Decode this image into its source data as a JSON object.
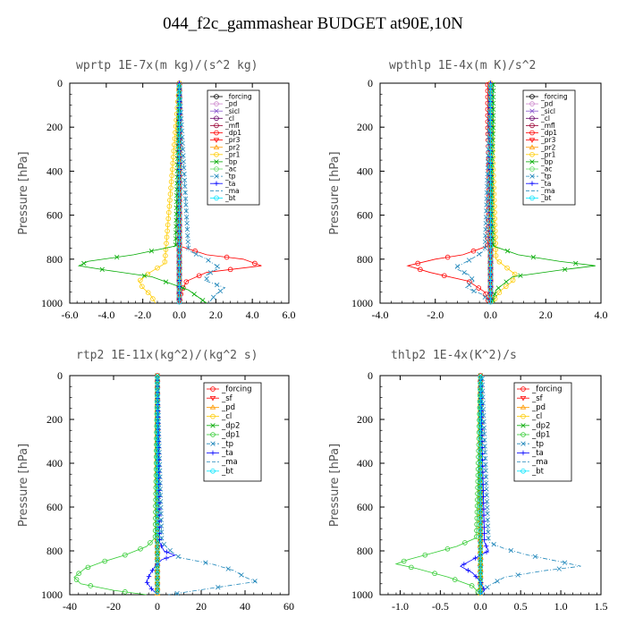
{
  "figure": {
    "title": "044_f2c_gammashear  BUDGET at90E,10N"
  },
  "chart_data": [
    {
      "type": "line",
      "title": "wprtp  1E-7x(m kg)/(s^2 kg)",
      "ylabel": "Pressure [hPa]",
      "xlim": [
        -6,
        6
      ],
      "ylim": [
        1000,
        0
      ],
      "x_ticks": [
        -6,
        -4,
        -2,
        0,
        2,
        4,
        6
      ],
      "x_tick_labels": [
        "-6.0",
        "-4.0",
        "-2.0",
        "0.0",
        "2.0",
        "4.0",
        "6.0"
      ],
      "y_ticks": [
        0,
        200,
        400,
        600,
        800,
        1000
      ],
      "y_tick_labels": [
        "0",
        "200",
        "400",
        "600",
        "800",
        "1000"
      ],
      "legend": "top-right",
      "series": [
        {
          "name": "_forcing",
          "color": "#000000",
          "marker": "o",
          "p": [
            0,
            1000
          ],
          "x": [
            0,
            0
          ]
        },
        {
          "name": "_pd",
          "color": "#cc88cc",
          "marker": "o",
          "p": [
            0,
            1000
          ],
          "x": [
            0,
            0
          ]
        },
        {
          "name": "_sicl",
          "color": "#8855cc",
          "marker": "x",
          "p": [
            0,
            1000
          ],
          "x": [
            0,
            0
          ]
        },
        {
          "name": "_cl",
          "color": "#660066",
          "marker": "o",
          "p": [
            0,
            1000
          ],
          "x": [
            0,
            0
          ]
        },
        {
          "name": "_mfl",
          "color": "#990033",
          "marker": "o",
          "p": [
            0,
            1000
          ],
          "x": [
            0,
            0
          ]
        },
        {
          "name": "_dp1",
          "color": "#ff0000",
          "marker": "o",
          "p": [
            0,
            740,
            780,
            800,
            830,
            860,
            900,
            950,
            1000
          ],
          "x": [
            0,
            0,
            1.5,
            3.5,
            4.5,
            1.5,
            0.4,
            0.1,
            0
          ]
        },
        {
          "name": "_pr3",
          "color": "#ff0000",
          "marker": "v",
          "p": [
            0,
            1000
          ],
          "x": [
            0,
            0
          ]
        },
        {
          "name": "_pr2",
          "color": "#ff9900",
          "marker": "^",
          "p": [
            0,
            1000
          ],
          "x": [
            0,
            0
          ]
        },
        {
          "name": "_pr1",
          "color": "#ffcc00",
          "marker": "o",
          "p": [
            0,
            820,
            860,
            900,
            930,
            960,
            1000
          ],
          "x": [
            0,
            -0.8,
            -1.6,
            -2.2,
            -2.0,
            -1.6,
            -1.3
          ]
        },
        {
          "name": "_bp",
          "color": "#00aa00",
          "marker": "x",
          "p": [
            0,
            740,
            780,
            810,
            830,
            850,
            880,
            940,
            1000
          ],
          "x": [
            0,
            -0.2,
            -2.5,
            -5.0,
            -5.5,
            -4.0,
            -1.5,
            0.5,
            1.5
          ]
        },
        {
          "name": "_ac",
          "color": "#66dd66",
          "marker": "o",
          "p": [
            0,
            1000
          ],
          "x": [
            0,
            0
          ]
        },
        {
          "name": "_tp",
          "color": "#2288bb",
          "marker": "x",
          "p": [
            0,
            760,
            800,
            840,
            870,
            900,
            930,
            960,
            1000
          ],
          "x": [
            0,
            0.5,
            1.5,
            2.2,
            1.5,
            1.5,
            2.5,
            2.0,
            1.6
          ]
        },
        {
          "name": "_ta",
          "color": "#0000ff",
          "marker": "+",
          "p": [
            0,
            1000
          ],
          "x": [
            0,
            0
          ]
        },
        {
          "name": "_ma",
          "color": "#2288bb",
          "marker": "",
          "p": [
            0,
            1000
          ],
          "x": [
            0,
            0
          ]
        },
        {
          "name": "_bt",
          "color": "#00e5ff",
          "marker": "o",
          "p": [
            0,
            1000
          ],
          "x": [
            0,
            0
          ]
        }
      ]
    },
    {
      "type": "line",
      "title": "wpthlp  1E-4x(m K)/s^2",
      "ylabel": "Pressure [hPa]",
      "xlim": [
        -4,
        4
      ],
      "ylim": [
        1000,
        0
      ],
      "x_ticks": [
        -4,
        -2,
        0,
        2,
        4
      ],
      "x_tick_labels": [
        "-4.0",
        "-2.0",
        "0.0",
        "2.0",
        "4.0"
      ],
      "y_ticks": [
        0,
        200,
        400,
        600,
        800,
        1000
      ],
      "y_tick_labels": [
        "0",
        "200",
        "400",
        "600",
        "800",
        "1000"
      ],
      "legend": "top-right",
      "series": [
        {
          "name": "_forcing",
          "color": "#000000",
          "marker": "o",
          "p": [
            0,
            1000
          ],
          "x": [
            0,
            0
          ]
        },
        {
          "name": "_pd",
          "color": "#cc88cc",
          "marker": "o",
          "p": [
            0,
            1000
          ],
          "x": [
            0,
            0
          ]
        },
        {
          "name": "_sicl",
          "color": "#8855cc",
          "marker": "x",
          "p": [
            0,
            1000
          ],
          "x": [
            0,
            0
          ]
        },
        {
          "name": "_cl",
          "color": "#660066",
          "marker": "o",
          "p": [
            0,
            1000
          ],
          "x": [
            0,
            0
          ]
        },
        {
          "name": "_mfl",
          "color": "#990033",
          "marker": "o",
          "p": [
            0,
            1000
          ],
          "x": [
            0,
            0
          ]
        },
        {
          "name": "_dp1",
          "color": "#ff0000",
          "marker": "o",
          "p": [
            0,
            200,
            400,
            600,
            740,
            780,
            800,
            830,
            860,
            900,
            950,
            1000
          ],
          "x": [
            -0.1,
            -0.1,
            -0.05,
            -0.05,
            -0.1,
            -1.0,
            -2.0,
            -3.0,
            -2.2,
            -0.8,
            -0.2,
            -0.05
          ]
        },
        {
          "name": "_pr3",
          "color": "#ff0000",
          "marker": "v",
          "p": [
            0,
            1000
          ],
          "x": [
            0,
            0
          ]
        },
        {
          "name": "_pr2",
          "color": "#ff9900",
          "marker": "^",
          "p": [
            0,
            1000
          ],
          "x": [
            0,
            0
          ]
        },
        {
          "name": "_pr1",
          "color": "#ffcc00",
          "marker": "o",
          "p": [
            0,
            800,
            840,
            870,
            900,
            940,
            970,
            1000
          ],
          "x": [
            0,
            0.2,
            0.6,
            0.9,
            0.8,
            0.4,
            0.2,
            0.1
          ]
        },
        {
          "name": "_bp",
          "color": "#00aa00",
          "marker": "x",
          "p": [
            0,
            200,
            400,
            600,
            740,
            780,
            810,
            830,
            850,
            880,
            940,
            1000
          ],
          "x": [
            0.1,
            0.1,
            0.05,
            0.05,
            0.1,
            1.0,
            2.5,
            3.8,
            2.5,
            0.8,
            0.2,
            0.05
          ]
        },
        {
          "name": "_ac",
          "color": "#66dd66",
          "marker": "o",
          "p": [
            0,
            1000
          ],
          "x": [
            0,
            0
          ]
        },
        {
          "name": "_tp",
          "color": "#2288bb",
          "marker": "x",
          "p": [
            0,
            760,
            800,
            840,
            870,
            900,
            930,
            960,
            1000
          ],
          "x": [
            0,
            -0.2,
            -0.7,
            -1.3,
            -0.8,
            -0.6,
            -0.9,
            -0.3,
            0
          ]
        },
        {
          "name": "_ta",
          "color": "#0000ff",
          "marker": "+",
          "p": [
            0,
            1000
          ],
          "x": [
            0,
            0
          ]
        },
        {
          "name": "_ma",
          "color": "#2288bb",
          "marker": "",
          "p": [
            0,
            1000
          ],
          "x": [
            0,
            0
          ]
        },
        {
          "name": "_bt",
          "color": "#00e5ff",
          "marker": "o",
          "p": [
            0,
            1000
          ],
          "x": [
            0,
            0
          ]
        }
      ]
    },
    {
      "type": "line",
      "title": "rtp2  1E-11x(kg^2)/(kg^2 s)",
      "ylabel": "Pressure [hPa]",
      "xlim": [
        -40,
        60
      ],
      "ylim": [
        1000,
        0
      ],
      "x_ticks": [
        -40,
        -20,
        0,
        20,
        40,
        60
      ],
      "x_tick_labels": [
        "-40",
        "-20",
        "0",
        "20",
        "40",
        "60"
      ],
      "y_ticks": [
        0,
        200,
        400,
        600,
        800,
        1000
      ],
      "y_tick_labels": [
        "0",
        "200",
        "400",
        "600",
        "800",
        "1000"
      ],
      "legend": "top-right",
      "series": [
        {
          "name": "_forcing",
          "color": "#ff0000",
          "marker": "o",
          "p": [
            0,
            1000
          ],
          "x": [
            0,
            0
          ]
        },
        {
          "name": "_sf",
          "color": "#ff0000",
          "marker": "v",
          "p": [
            0,
            1000
          ],
          "x": [
            0,
            0
          ]
        },
        {
          "name": "_pd",
          "color": "#ff9900",
          "marker": "^",
          "p": [
            0,
            1000
          ],
          "x": [
            0,
            0
          ]
        },
        {
          "name": "_cl",
          "color": "#ffcc00",
          "marker": "o",
          "p": [
            0,
            1000
          ],
          "x": [
            0,
            0
          ]
        },
        {
          "name": "_dp2",
          "color": "#00aa00",
          "marker": "x",
          "p": [
            0,
            1000
          ],
          "x": [
            0,
            0
          ]
        },
        {
          "name": "_dp1",
          "color": "#33cc33",
          "marker": "o",
          "p": [
            0,
            740,
            780,
            820,
            850,
            880,
            920,
            950,
            980,
            1000
          ],
          "x": [
            0,
            -1,
            -5,
            -15,
            -25,
            -33,
            -38,
            -35,
            -20,
            -5
          ]
        },
        {
          "name": "_tp",
          "color": "#2288bb",
          "marker": "x",
          "p": [
            0,
            760,
            800,
            830,
            860,
            890,
            920,
            940,
            970,
            1000
          ],
          "x": [
            0,
            2,
            6,
            10,
            25,
            35,
            40,
            45,
            25,
            5
          ]
        },
        {
          "name": "_ta",
          "color": "#0000ff",
          "marker": "+",
          "p": [
            0,
            760,
            800,
            820,
            840,
            870,
            900,
            940,
            970,
            1000
          ],
          "x": [
            0,
            1,
            3,
            8,
            2,
            -1,
            -3,
            -5,
            -3,
            0
          ]
        },
        {
          "name": "_ma",
          "color": "#2288bb",
          "marker": "",
          "p": [
            0,
            1000
          ],
          "x": [
            0,
            0
          ]
        },
        {
          "name": "_bt",
          "color": "#00e5ff",
          "marker": "o",
          "p": [
            0,
            1000
          ],
          "x": [
            0,
            0
          ]
        }
      ]
    },
    {
      "type": "line",
      "title": "thlp2  1E-4x(K^2)/s",
      "ylabel": "Pressure [hPa]",
      "xlim": [
        -1.25,
        1.5
      ],
      "ylim": [
        1000,
        0
      ],
      "x_ticks": [
        -1.0,
        -0.5,
        0.0,
        0.5,
        1.0,
        1.5
      ],
      "x_tick_labels": [
        "-1.0",
        "-0.5",
        "0.0",
        "0.5",
        "1.0",
        "1.5"
      ],
      "y_ticks": [
        0,
        200,
        400,
        600,
        800,
        1000
      ],
      "y_tick_labels": [
        "0",
        "200",
        "400",
        "600",
        "800",
        "1000"
      ],
      "legend": "top-right",
      "series": [
        {
          "name": "_forcing",
          "color": "#ff0000",
          "marker": "o",
          "p": [
            0,
            1000
          ],
          "x": [
            0,
            0
          ]
        },
        {
          "name": "_sf",
          "color": "#ff0000",
          "marker": "v",
          "p": [
            0,
            1000
          ],
          "x": [
            0,
            0
          ]
        },
        {
          "name": "_pd",
          "color": "#ff9900",
          "marker": "^",
          "p": [
            0,
            1000
          ],
          "x": [
            0,
            0
          ]
        },
        {
          "name": "_cl",
          "color": "#ffcc00",
          "marker": "o",
          "p": [
            0,
            1000
          ],
          "x": [
            0,
            0
          ]
        },
        {
          "name": "_dp2",
          "color": "#00aa00",
          "marker": "x",
          "p": [
            0,
            1000
          ],
          "x": [
            0,
            0
          ]
        },
        {
          "name": "_dp1",
          "color": "#33cc33",
          "marker": "o",
          "p": [
            0,
            740,
            780,
            810,
            840,
            860,
            880,
            920,
            960,
            1000
          ],
          "x": [
            0,
            -0.05,
            -0.3,
            -0.6,
            -0.9,
            -1.05,
            -0.8,
            -0.4,
            -0.1,
            0
          ]
        },
        {
          "name": "_tp",
          "color": "#2288bb",
          "marker": "x",
          "p": [
            0,
            760,
            790,
            820,
            850,
            870,
            890,
            920,
            960,
            1000
          ],
          "x": [
            0.02,
            0.1,
            0.3,
            0.6,
            1.0,
            1.25,
            0.8,
            0.3,
            0.1,
            0
          ]
        },
        {
          "name": "_ta",
          "color": "#0000ff",
          "marker": "+",
          "p": [
            0,
            760,
            800,
            840,
            870,
            900,
            940,
            980,
            1000
          ],
          "x": [
            0,
            0.05,
            0.1,
            -0.1,
            -0.25,
            -0.1,
            0,
            0.05,
            0
          ]
        },
        {
          "name": "_ma",
          "color": "#2288bb",
          "marker": "",
          "p": [
            0,
            1000
          ],
          "x": [
            0,
            0
          ]
        },
        {
          "name": "_bt",
          "color": "#00e5ff",
          "marker": "o",
          "p": [
            0,
            1000
          ],
          "x": [
            0,
            0
          ]
        }
      ]
    }
  ]
}
